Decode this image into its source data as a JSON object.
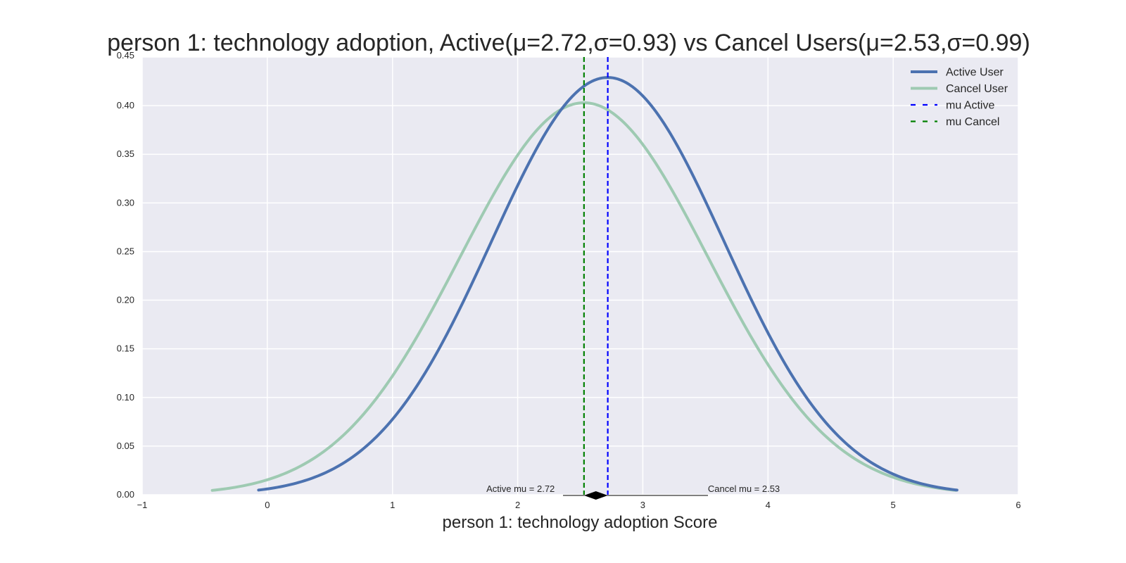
{
  "chart_data": {
    "type": "line",
    "title": "person 1: technology adoption, Active(μ=2.72,σ=0.93) vs Cancel Users(μ=2.53,σ=0.99)",
    "xlabel": "person 1: technology adoption Score",
    "ylabel": "",
    "xlim": [
      -1,
      6
    ],
    "ylim": [
      0,
      0.45
    ],
    "xticks": [
      -1,
      0,
      1,
      2,
      3,
      4,
      5,
      6
    ],
    "xtick_labels": [
      "−1",
      "0",
      "1",
      "2",
      "3",
      "4",
      "5",
      "6"
    ],
    "yticks": [
      0.0,
      0.05,
      0.1,
      0.15,
      0.2,
      0.25,
      0.3,
      0.35,
      0.4,
      0.45
    ],
    "ytick_labels": [
      "0.00",
      "0.05",
      "0.10",
      "0.15",
      "0.20",
      "0.25",
      "0.30",
      "0.35",
      "0.40",
      "0.45"
    ],
    "grid": true,
    "background": "#eaeaf2",
    "legend_position": "top-right",
    "series": [
      {
        "name": "Active User",
        "kind": "normal-pdf",
        "mu": 2.72,
        "sigma": 0.93,
        "x_range": [
          -0.07,
          5.51
        ],
        "color": "#4c72b0"
      },
      {
        "name": "Cancel User",
        "kind": "normal-pdf",
        "mu": 2.53,
        "sigma": 0.99,
        "x_range": [
          -0.44,
          5.5
        ],
        "color": "#9ecab2"
      }
    ],
    "vlines": [
      {
        "name": "mu Active",
        "x": 2.72,
        "color": "#0000ff",
        "style": "dashed"
      },
      {
        "name": "mu Cancel",
        "x": 2.53,
        "color": "#008000",
        "style": "dashed"
      }
    ],
    "annotations": [
      {
        "text": "Active mu = 2.72",
        "x": 1.75,
        "y": 0.002
      },
      {
        "text": "Cancel mu = 2.53",
        "x": 3.52,
        "y": 0.002
      }
    ]
  }
}
